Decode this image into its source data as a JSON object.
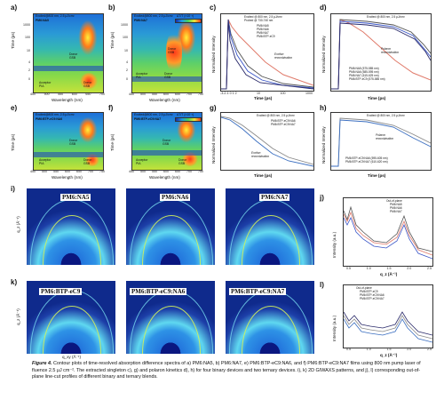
{
  "panels": {
    "a": {
      "label": "a)",
      "header": "Excited@800 nm, 2.5 μJ/cm²",
      "sample": "PM6:NA5",
      "donor": "Donor\nGSB",
      "acceptor": "Acceptor\nPIA",
      "donor2": "Donor\nGSB"
    },
    "b": {
      "label": "b)",
      "header": "Excited@800 nm, 2.5 μJ/cm²",
      "sample": "PM6:NA7",
      "donor": "Donor\nGSB",
      "acceptor": "Acceptor\nPIA",
      "donor2": "Donor\nGSB",
      "scale": "ΔT/T (×10⁻³)"
    },
    "c": {
      "label": "c)",
      "legend": [
        "PM6:NA5",
        "PM6:NA6",
        "PM6:NA7",
        "PM6:BTP-eC9"
      ],
      "header": "Excited @ 800 nm, 2.5 μJ/cm²\nProbed @ 730-740 nm",
      "note": "Exciton\nrecombination"
    },
    "d": {
      "label": "d)",
      "legend": [
        "PM6:NA5 (575-585 nm)",
        "PM6:NA6 (585-595 nm)",
        "PM6:NA7 (615-625 nm)",
        "PM6:BTP-eC9 (575-585 nm)"
      ],
      "header": "Excited @ 800 nm, 2.5 μJ/cm²",
      "note": "Polaron\nrecombination"
    },
    "e": {
      "label": "e)",
      "header": "Excited@800 nm, 2.5 μJ/cm²",
      "sample": "PM6:BTP-eC9:NA6",
      "donor": "Donor\nGSB",
      "acceptor": "Acceptor\nPIA",
      "donor2": "Donor\nGSB"
    },
    "f": {
      "label": "f)",
      "header": "Excited@800 nm, 2.5 μJ/cm²",
      "sample": "PM6:BTP-eC9:NA7",
      "donor": "Donor\nGSB",
      "acceptor": "Acceptor\nPIA",
      "donor2": "Donor\nGSB",
      "scale": "ΔT/T (×10⁻³)"
    },
    "g": {
      "label": "g)",
      "legend": [
        "PM6:BTP-eC9:NA6",
        "PM6:BTP-eC9:NA7"
      ],
      "header": "Excited @ 800 nm, 2.5 μJ/cm²",
      "note": "Exciton\nrecombination"
    },
    "h": {
      "label": "h)",
      "legend": [
        "PM6:BTP-eC9:NA6 (595-605 nm)",
        "PM6:BTP-eC9:NA7 (610-620 nm)"
      ],
      "header": "Excited @ 800 nm, 2.5 μJ/cm²",
      "note": "Polaron\nrecombination"
    },
    "i": {
      "label": "i)",
      "samples": [
        "PM6:NA5",
        "PM6:NA6",
        "PM6:NA7"
      ]
    },
    "j": {
      "label": "j)",
      "legend_title": "Out-of-plane",
      "legend": [
        "PM6:NA5",
        "PM6:NA6",
        "PM6:NA7"
      ]
    },
    "k": {
      "label": "k)",
      "samples": [
        "PM6:BTP-eC9",
        "PM6:BTP-eC9:NA6",
        "PM6:BTP-eC9:NA7"
      ]
    },
    "l": {
      "label": "l)",
      "legend_title": "Out-of-plane",
      "legend": [
        "PM6:BTP-eC9",
        "PM6:BTP-eC9:NA6",
        "PM6:BTP-eC9:NA7"
      ]
    }
  },
  "axes": {
    "time_ps": "Time (ps)",
    "wavelength": "Wavelength (nm)",
    "norm_int": "Normalized Intensity",
    "intensity": "Intensity (a.u.)",
    "qz": "q_z (Å⁻¹)",
    "qxy": "q_xy (Å⁻¹)",
    "wl_ticks": [
      "450",
      "500",
      "550",
      "600",
      "650",
      "700",
      "750"
    ],
    "time_ticks_map": [
      "1000",
      "100",
      "10",
      "4",
      "2",
      "0",
      "-2"
    ],
    "time_ticks_c": [
      "-3-2-1 0 1 2",
      "10",
      "100",
      "1000"
    ],
    "q_ticks": [
      "0.5",
      "1.0",
      "1.5",
      "2.0",
      "2.5"
    ]
  },
  "caption": {
    "lead": "Figure 4.",
    "text": " Contour plots of time-resolved absorption difference spectra of a) PM6:NA5, b) PM6:NA7, e) PM6:BTP-eC9:NA6, and f) PM6:BTP-eC9:NA7 films using 800 nm pump laser of fluence 2.5 μJ cm⁻². The extracted singleton c), g) and polaron kinetics d), h) for four binary devices and two ternary devices. i), k) 2D GIWAXS patterns, and j), l) corresponding out-of-plane line-cut profiles of different binary and ternary blends."
  },
  "colors": {
    "na5": "#555555",
    "na6": "#e07a6a",
    "na7": "#3a56c8",
    "btp": "#2a2a6a",
    "t6": "#8a8a8a",
    "t7": "#3a6ec0"
  }
}
